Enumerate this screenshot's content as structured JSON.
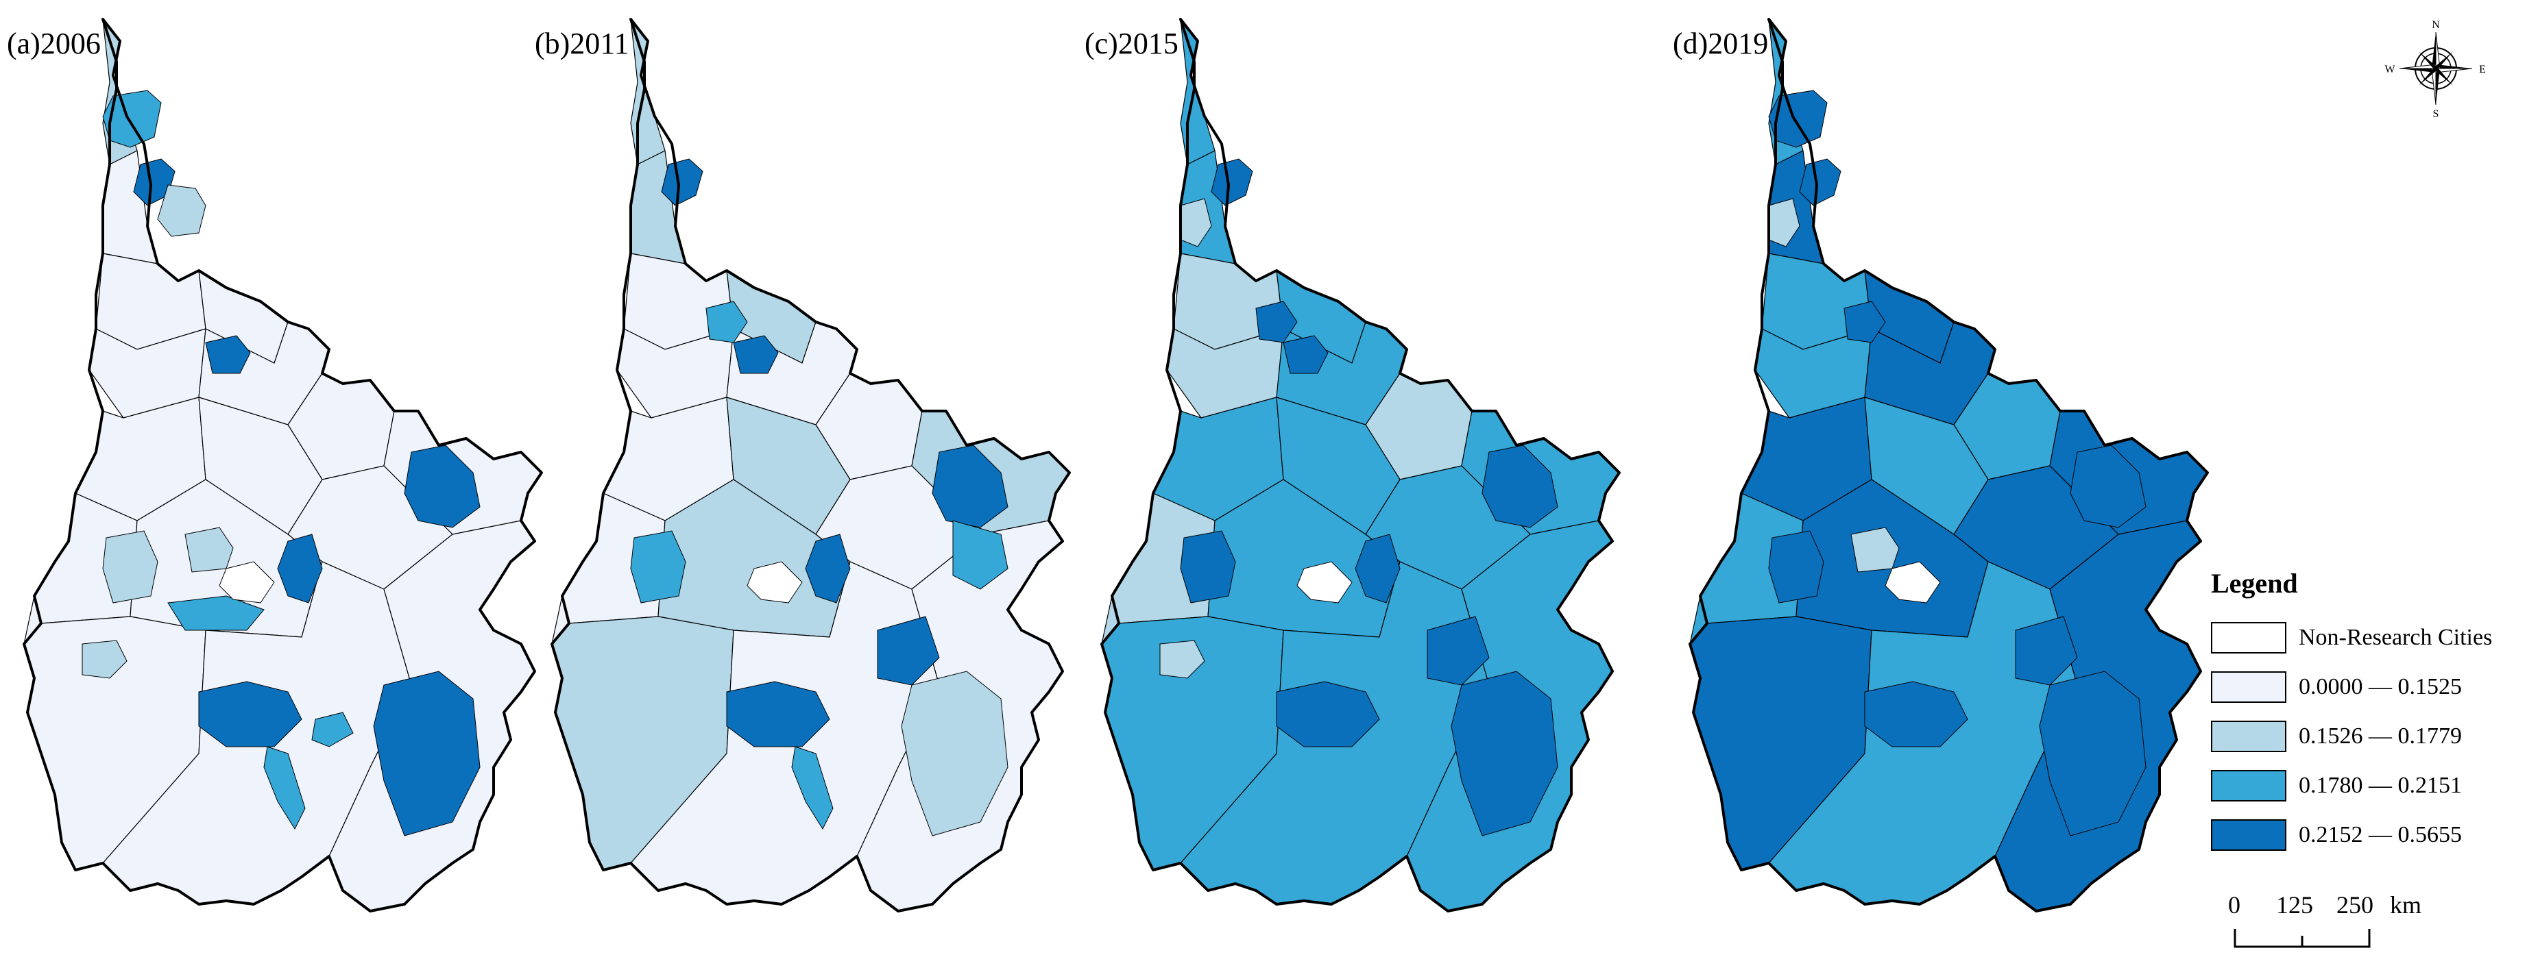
{
  "colors": {
    "non_research": "#ffffff",
    "c1": "#eff4fc",
    "c2": "#b4d8e8",
    "c3": "#36a8d8",
    "c4": "#0b70bc",
    "stroke": "#000000"
  },
  "panels": [
    {
      "label": "(a)2006",
      "year": 2006,
      "region_classes": [
        2,
        1,
        1,
        1,
        1,
        1,
        1,
        1,
        1,
        1,
        1,
        1,
        1,
        1,
        1,
        1
      ],
      "spots": [
        {
          "cls": 3,
          "region": "north-top"
        },
        {
          "cls": 4,
          "region": "north-mid"
        },
        {
          "cls": 2,
          "region": "north-mid-right"
        },
        {
          "cls": 4,
          "region": "center-small"
        },
        {
          "cls": 4,
          "region": "east"
        },
        {
          "cls": 2,
          "region": "west-mid"
        },
        {
          "cls": 2,
          "region": "mid-center"
        },
        {
          "cls": 4,
          "region": "mid-right"
        },
        {
          "cls": 3,
          "region": "mid-lower"
        },
        {
          "cls": 2,
          "region": "southwest"
        },
        {
          "cls": 4,
          "region": "south"
        },
        {
          "cls": 3,
          "region": "south-tail"
        },
        {
          "cls": 4,
          "region": "southeast"
        },
        {
          "cls": 3,
          "region": "south-small"
        }
      ]
    },
    {
      "label": "(b)2011",
      "year": 2011,
      "region_classes": [
        2,
        2,
        1,
        2,
        1,
        1,
        1,
        2,
        1,
        2,
        1,
        1,
        2,
        2,
        1,
        1
      ],
      "spots": [
        {
          "cls": 4,
          "region": "north-mid"
        },
        {
          "cls": 3,
          "region": "north-lower"
        },
        {
          "cls": 4,
          "region": "center-small"
        },
        {
          "cls": 4,
          "region": "east"
        },
        {
          "cls": 3,
          "region": "west-mid"
        },
        {
          "cls": 4,
          "region": "mid-right"
        },
        {
          "cls": 4,
          "region": "southeast-upper"
        },
        {
          "cls": 4,
          "region": "south"
        },
        {
          "cls": 3,
          "region": "south-tail"
        },
        {
          "cls": 2,
          "region": "southeast"
        },
        {
          "cls": 3,
          "region": "east-lower"
        }
      ]
    },
    {
      "label": "(c)2015",
      "year": 2015,
      "region_classes": [
        3,
        3,
        2,
        3,
        2,
        3,
        2,
        3,
        3,
        3,
        3,
        2,
        3,
        3,
        3,
        3
      ],
      "spots": [
        {
          "cls": 4,
          "region": "north-mid"
        },
        {
          "cls": 4,
          "region": "north-lower"
        },
        {
          "cls": 4,
          "region": "center-small"
        },
        {
          "cls": 4,
          "region": "east"
        },
        {
          "cls": 4,
          "region": "west-mid"
        },
        {
          "cls": 4,
          "region": "mid-right"
        },
        {
          "cls": 4,
          "region": "southeast-upper"
        },
        {
          "cls": 4,
          "region": "south"
        },
        {
          "cls": 4,
          "region": "southeast"
        },
        {
          "cls": 2,
          "region": "southwest"
        },
        {
          "cls": 2,
          "region": "north-west"
        }
      ]
    },
    {
      "label": "(d)2019",
      "year": 2019,
      "region_classes": [
        3,
        4,
        3,
        4,
        3,
        4,
        3,
        4,
        4,
        3,
        4,
        3,
        4,
        4,
        3,
        4
      ],
      "spots": [
        {
          "cls": 4,
          "region": "north-top"
        },
        {
          "cls": 4,
          "region": "north-mid"
        },
        {
          "cls": 4,
          "region": "north-lower"
        },
        {
          "cls": 2,
          "region": "mid-center"
        },
        {
          "cls": 4,
          "region": "east"
        },
        {
          "cls": 4,
          "region": "west-mid"
        },
        {
          "cls": 4,
          "region": "southeast-upper"
        },
        {
          "cls": 4,
          "region": "south"
        },
        {
          "cls": 4,
          "region": "southeast"
        },
        {
          "cls": 2,
          "region": "north-west"
        }
      ]
    }
  ],
  "compass": {
    "n": "N",
    "s": "S",
    "e": "E",
    "w": "W"
  },
  "legend": {
    "title": "Legend",
    "items": [
      {
        "label": "Non-Research Cities",
        "color": "#ffffff"
      },
      {
        "label": "0.0000 — 0.1525",
        "color": "#eff4fc"
      },
      {
        "label": "0.1526 — 0.1779",
        "color": "#b4d8e8"
      },
      {
        "label": "0.1780 — 0.2151",
        "color": "#36a8d8"
      },
      {
        "label": "0.2152 — 0.5655",
        "color": "#0b70bc"
      }
    ]
  },
  "scale": {
    "ticks": [
      "0",
      "125",
      "250"
    ],
    "unit": "km"
  }
}
